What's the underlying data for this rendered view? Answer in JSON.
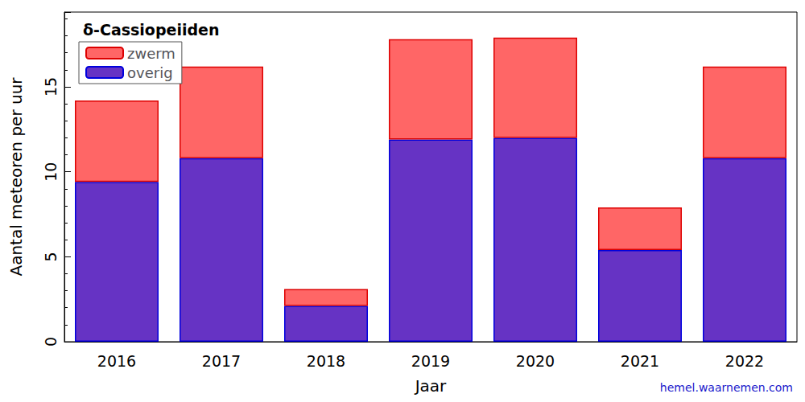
{
  "chart_data": {
    "type": "bar",
    "title": "δ-Cassiopeiiden",
    "x_label": "Jaar",
    "y_label": "Aantal meteoren per uur",
    "annotation": "hemel.waarnemen.com",
    "categories": [
      "2016",
      "2017",
      "2018",
      "2019",
      "2020",
      "2021",
      "2022"
    ],
    "series": [
      {
        "name": "overig",
        "color": "#6633c4",
        "values": [
          9.4,
          10.8,
          2.1,
          11.9,
          12.0,
          5.4,
          10.8
        ]
      },
      {
        "name": "zwerm",
        "color": "#ff6666",
        "values": [
          4.8,
          5.4,
          1.0,
          5.9,
          5.9,
          2.5,
          5.4
        ]
      }
    ],
    "stacked": true,
    "legend": "upper left",
    "ylim": [
      0,
      19.4
    ],
    "yticks": [
      0,
      5,
      10,
      15
    ],
    "grid": false
  }
}
